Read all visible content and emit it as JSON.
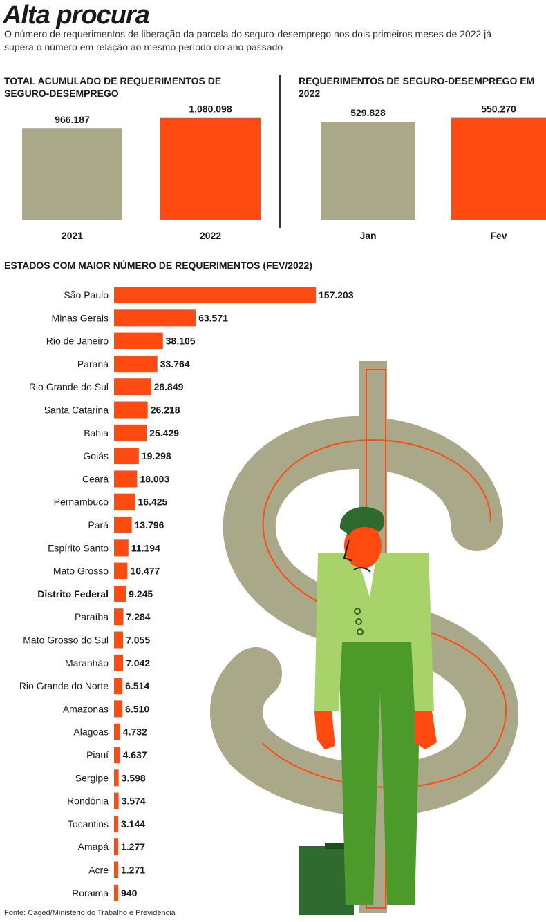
{
  "title": "Alta procura",
  "subtitle": "O número de requerimentos de liberação da parcela do seguro-desemprego nos dois primeiros meses de 2022 já supera o número em relação ao mesmo período do ano passado",
  "colors": {
    "olive": "#a9a888",
    "orange": "#ff4b12",
    "text": "#1a1a1a"
  },
  "chart_data": [
    {
      "type": "bar",
      "title": "TOTAL ACUMULADO DE REQUERIMENTOS DE SEGURO-DESEMPREGO",
      "categories": [
        "2021",
        "2022"
      ],
      "values": [
        966187,
        1080098
      ],
      "value_labels": [
        "966.187",
        "1.080.098"
      ],
      "ylim": [
        0,
        1100000
      ]
    },
    {
      "type": "bar",
      "title": "REQUERIMENTOS DE SEGURO-DESEMPREGO EM 2022",
      "categories": [
        "Jan",
        "Fev"
      ],
      "values": [
        529828,
        550270
      ],
      "value_labels": [
        "529.828",
        "550.270"
      ],
      "ylim": [
        0,
        560000
      ]
    },
    {
      "type": "bar",
      "orientation": "horizontal",
      "title": "ESTADOS COM MAIOR NÚMERO DE REQUERIMENTOS (FEV/2022)",
      "highlight": "Distrito Federal",
      "categories": [
        "São Paulo",
        "Minas Gerais",
        "Rio de Janeiro",
        "Paraná",
        "Rio Grande do Sul",
        "Santa Catarina",
        "Bahia",
        "Goiás",
        "Ceará",
        "Pernambuco",
        "Pará",
        "Espírito Santo",
        "Mato Grosso",
        "Distrito Federal",
        "Paraíba",
        "Mato Grosso do Sul",
        "Maranhão",
        "Rio Grande do Norte",
        "Amazonas",
        "Alagoas",
        "Piauí",
        "Sergipe",
        "Rondônia",
        "Tocantins",
        "Amapá",
        "Acre",
        "Roraima"
      ],
      "values": [
        157203,
        63571,
        38105,
        33764,
        28849,
        26218,
        25429,
        19298,
        18003,
        16425,
        13796,
        11194,
        10477,
        9245,
        7284,
        7055,
        7042,
        6514,
        6510,
        4732,
        4637,
        3598,
        3574,
        3144,
        1277,
        1271,
        940
      ],
      "value_labels": [
        "157.203",
        "63.571",
        "38.105",
        "33.764",
        "28.849",
        "26.218",
        "25.429",
        "19.298",
        "18.003",
        "16.425",
        "13.796",
        "11.194",
        "10.477",
        "9.245",
        "7.284",
        "7.055",
        "7.042",
        "6.514",
        "6.510",
        "4.732",
        "4.637",
        "3.598",
        "3.574",
        "3.144",
        "1.277",
        "1.271",
        "940"
      ]
    }
  ],
  "source": "Fonte: Caged/Ministério do Trabalho e Previdência"
}
